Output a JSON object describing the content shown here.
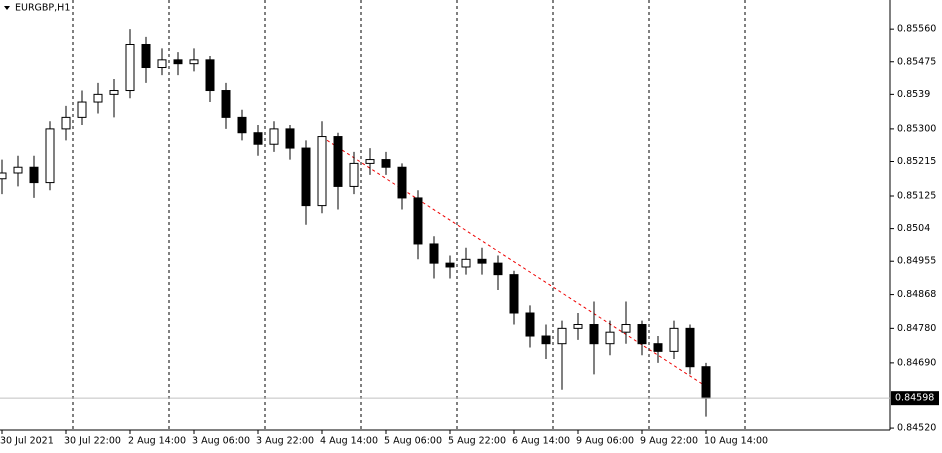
{
  "chart_data": {
    "type": "candlestick",
    "title": "EURGBP,H1",
    "categories": [
      "30 Jul 2021",
      null,
      null,
      null,
      "30 Jul 22:00",
      null,
      null,
      null,
      "2 Aug 14:00",
      null,
      null,
      null,
      "3 Aug 06:00",
      null,
      null,
      null,
      "3 Aug 22:00",
      null,
      null,
      null,
      "4 Aug 14:00",
      null,
      null,
      null,
      "5 Aug 06:00",
      null,
      null,
      null,
      "5 Aug 22:00",
      null,
      null,
      null,
      "6 Aug 14:00",
      null,
      null,
      null,
      "9 Aug 06:00",
      null,
      null,
      null,
      "9 Aug 22:00",
      null,
      null,
      null,
      "10 Aug 14:00"
    ],
    "open": [
      0.8517,
      0.85185,
      0.852,
      0.8516,
      0.853,
      0.8533,
      0.8537,
      0.8539,
      0.854,
      0.8552,
      0.8546,
      0.8548,
      0.8547,
      0.8548,
      0.854,
      0.8533,
      0.8529,
      0.8526,
      0.853,
      0.8525,
      0.851,
      0.8528,
      0.8515,
      0.8521,
      0.8522,
      0.852,
      0.8512,
      0.85,
      0.8495,
      0.8494,
      0.8496,
      0.8495,
      0.8492,
      0.8482,
      0.8476,
      0.8474,
      0.8478,
      0.8479,
      0.8474,
      0.8477,
      0.8479,
      0.8474,
      0.8472,
      0.8478,
      0.8468
    ],
    "high": [
      0.8522,
      0.8523,
      0.8523,
      0.8532,
      0.8536,
      0.854,
      0.8542,
      0.8543,
      0.8556,
      0.8554,
      0.8551,
      0.855,
      0.8551,
      0.8549,
      0.8542,
      0.8535,
      0.8531,
      0.8532,
      0.8531,
      0.8527,
      0.8532,
      0.8529,
      0.8524,
      0.8525,
      0.8524,
      0.8521,
      0.8514,
      0.8502,
      0.8497,
      0.8499,
      0.8499,
      0.8497,
      0.8493,
      0.8484,
      0.8479,
      0.848,
      0.8482,
      0.8485,
      0.848,
      0.8485,
      0.848,
      0.8476,
      0.848,
      0.8479,
      0.8469
    ],
    "low": [
      0.8513,
      0.8515,
      0.8512,
      0.8514,
      0.8527,
      0.8531,
      0.8534,
      0.8533,
      0.8538,
      0.8542,
      0.8544,
      0.8544,
      0.8545,
      0.8537,
      0.853,
      0.8527,
      0.8523,
      0.8524,
      0.8522,
      0.8505,
      0.8508,
      0.8509,
      0.8513,
      0.8518,
      0.8518,
      0.8509,
      0.8496,
      0.8491,
      0.8491,
      0.8492,
      0.8492,
      0.8488,
      0.8479,
      0.8473,
      0.847,
      0.8462,
      0.8475,
      0.8466,
      0.8471,
      0.8474,
      0.8471,
      0.8469,
      0.847,
      0.8466,
      0.8455
    ],
    "close": [
      0.85185,
      0.852,
      0.8516,
      0.853,
      0.8533,
      0.8537,
      0.8539,
      0.854,
      0.8552,
      0.8546,
      0.8548,
      0.8547,
      0.8548,
      0.854,
      0.8533,
      0.8529,
      0.8526,
      0.853,
      0.8525,
      0.851,
      0.8528,
      0.8515,
      0.8521,
      0.8522,
      0.852,
      0.8512,
      0.85,
      0.8495,
      0.8494,
      0.8496,
      0.8495,
      0.8492,
      0.8482,
      0.8476,
      0.8474,
      0.8478,
      0.8479,
      0.8474,
      0.8477,
      0.8479,
      0.8474,
      0.8472,
      0.8478,
      0.8468,
      0.84598
    ],
    "ylim": [
      0.84515,
      0.85636
    ],
    "yticks": [
      {
        "value": 0.8556,
        "label": "0.85560"
      },
      0.85475,
      0.8539,
      {
        "value": 0.853,
        "label": "0.85300"
      },
      0.85215,
      0.85125,
      0.8504,
      0.84955,
      0.84868,
      {
        "value": 0.8478,
        "label": "0.84780"
      },
      {
        "value": 0.8469,
        "label": "0.84690"
      },
      {
        "value": 0.8452,
        "label": "0.84520"
      }
    ],
    "current_price": 0.84598
  }
}
